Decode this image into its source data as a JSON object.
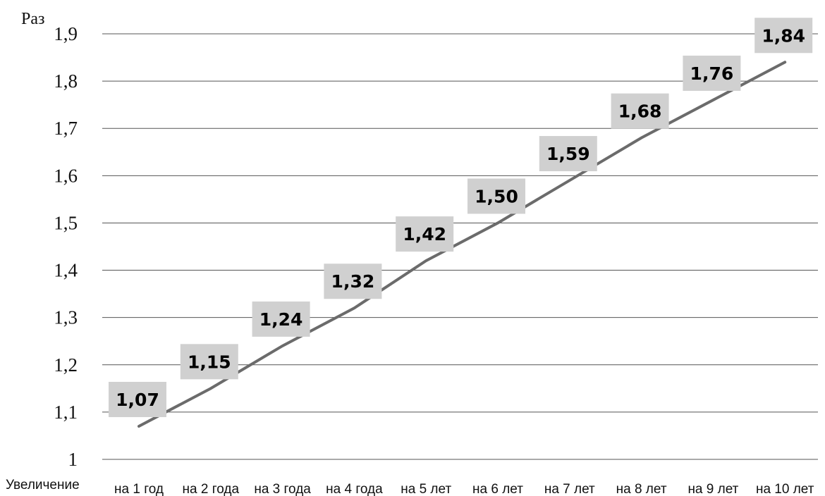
{
  "chart_data": {
    "type": "line",
    "ylabel": "Раз",
    "xlabel": "Увеличение",
    "categories": [
      "на 1 год",
      "на 2 года",
      "на 3 года",
      "на 4 года",
      "на 5 лет",
      "на 6 лет",
      "на 7 лет",
      "на 8 лет",
      "на 9 лет",
      "на 10 лет"
    ],
    "values": [
      1.07,
      1.15,
      1.24,
      1.32,
      1.42,
      1.5,
      1.59,
      1.68,
      1.76,
      1.84
    ],
    "data_labels": [
      "1,07",
      "1,15",
      "1,24",
      "1,32",
      "1,42",
      "1,50",
      "1,59",
      "1,68",
      "1,76",
      "1,84"
    ],
    "ylim": [
      1,
      1.9
    ],
    "yticks": [
      1,
      1.1,
      1.2,
      1.3,
      1.4,
      1.5,
      1.6,
      1.7,
      1.8,
      1.9
    ],
    "ytick_labels": [
      "1",
      "1,1",
      "1,2",
      "1,3",
      "1,4",
      "1,5",
      "1,6",
      "1,7",
      "1,8",
      "1,9"
    ],
    "grid": true,
    "line_color": "#6b6b6b",
    "label_background": "#d0d0d0"
  }
}
